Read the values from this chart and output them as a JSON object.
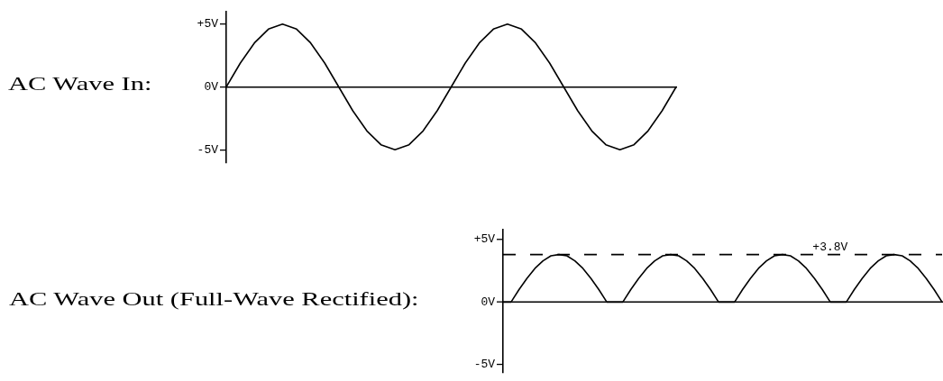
{
  "chart_data": [
    {
      "type": "line",
      "title": "AC Wave In:",
      "categories": [
        null,
        null,
        null,
        null,
        null,
        null,
        null,
        null,
        null,
        null,
        null,
        null,
        null,
        null,
        null,
        null,
        null,
        null,
        null,
        null,
        null,
        null,
        null,
        null,
        null,
        null,
        null,
        null,
        null,
        null,
        null,
        null,
        null
      ],
      "values": [
        0,
        1.9,
        3.5,
        4.6,
        5,
        4.6,
        3.5,
        1.9,
        0,
        -1.9,
        -3.5,
        -4.6,
        -5,
        -4.6,
        -3.5,
        -1.9,
        0,
        1.9,
        3.5,
        4.6,
        5,
        4.6,
        3.5,
        1.9,
        0,
        -1.9,
        -3.5,
        -4.6,
        -5,
        -4.6,
        -3.5,
        -1.9,
        0
      ],
      "color": "#000000",
      "ylim": [
        -6,
        6
      ],
      "yticks": [
        {
          "value": -5,
          "label": "-5V"
        },
        {
          "value": 0,
          "label": "0V"
        },
        {
          "value": 5,
          "label": "+5V"
        }
      ],
      "tick_labels": "y",
      "marker": "none",
      "legend": false
    },
    {
      "type": "line",
      "title": "AC Wave Out (Full-Wave Rectified):",
      "categories": [
        null,
        null,
        null,
        null,
        null,
        null,
        null,
        null,
        null,
        null,
        null,
        null,
        null,
        null,
        null,
        null,
        null,
        null,
        null,
        null,
        null,
        null,
        null,
        null,
        null,
        null,
        null,
        null,
        null,
        null,
        null,
        null,
        null,
        null,
        null,
        null,
        null,
        null,
        null,
        null,
        null,
        null,
        null,
        null,
        null,
        null,
        null,
        null,
        null,
        null,
        null,
        null,
        null,
        null,
        null,
        null
      ],
      "values": [
        0,
        0,
        1,
        1.9,
        2.7,
        3.3,
        3.7,
        3.8,
        3.7,
        3.3,
        2.7,
        1.9,
        1,
        0,
        0,
        0,
        1,
        1.9,
        2.7,
        3.3,
        3.7,
        3.8,
        3.7,
        3.3,
        2.7,
        1.9,
        1,
        0,
        0,
        0,
        1,
        1.9,
        2.7,
        3.3,
        3.7,
        3.8,
        3.7,
        3.3,
        2.7,
        1.9,
        1,
        0,
        0,
        0,
        1,
        1.9,
        2.7,
        3.3,
        3.7,
        3.8,
        3.7,
        3.3,
        2.7,
        1.9,
        1,
        0
      ],
      "color": "#000000",
      "ylim": [
        -5.6,
        5.8
      ],
      "yticks": [
        {
          "value": -5,
          "label": "-5V"
        },
        {
          "value": 0,
          "label": "0V"
        },
        {
          "value": 5,
          "label": "+5V"
        }
      ],
      "tick_labels": "y",
      "marker": "none",
      "legend": false,
      "ref_lines": [
        {
          "axis": "y",
          "value": 3.8,
          "label": "+3.8V",
          "line_style": "dashed",
          "color": "#000000"
        }
      ]
    }
  ]
}
